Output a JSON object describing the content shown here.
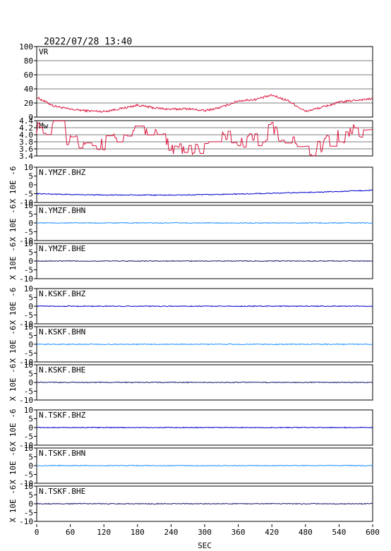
{
  "header": {
    "timestamp": "2022/07/28 13:40"
  },
  "chart_data": {
    "type": "line",
    "xlabel": "SEC",
    "xlim": [
      0,
      600
    ],
    "xticks": [
      "0",
      "60",
      "120",
      "180",
      "240",
      "300",
      "360",
      "420",
      "480",
      "540",
      "600"
    ],
    "panels": [
      {
        "label": "VR",
        "ylim": [
          0,
          100
        ],
        "yticks": [
          "100",
          "80",
          "60",
          "40",
          "20",
          "0"
        ],
        "grid": true,
        "color": "#dc143c",
        "x": [
          0,
          30,
          60,
          90,
          120,
          150,
          180,
          210,
          240,
          270,
          300,
          330,
          360,
          390,
          420,
          450,
          480,
          510,
          540,
          570,
          600
        ],
        "values": [
          28,
          16,
          11,
          9,
          8,
          12,
          17,
          13,
          11,
          12,
          9,
          14,
          23,
          25,
          31,
          23,
          8,
          14,
          21,
          24,
          26
        ]
      },
      {
        "label": "Mw",
        "ylim": [
          3.4,
          4.4
        ],
        "yticks": [
          "4.4",
          "4.2",
          "4.0",
          "3.8",
          "3.6",
          "3.4"
        ],
        "grid": true,
        "color": "#dc143c",
        "x": [
          0,
          30,
          60,
          90,
          120,
          150,
          180,
          210,
          240,
          270,
          300,
          330,
          360,
          390,
          420,
          450,
          480,
          510,
          540,
          570,
          600
        ],
        "values": [
          4.25,
          4.2,
          3.85,
          3.7,
          3.75,
          4.0,
          4.3,
          4.05,
          3.65,
          3.55,
          3.7,
          4.05,
          3.75,
          3.85,
          4.15,
          3.8,
          3.55,
          3.7,
          3.95,
          4.1,
          4.25
        ]
      },
      {
        "label": "N.YMZF.BHZ",
        "ylabel": "X 10E -6",
        "ylim": [
          -10,
          10
        ],
        "yticks": [
          "10",
          "5",
          "0",
          "-5",
          "-10"
        ],
        "color": "#0000cd",
        "x": [
          0,
          60,
          120,
          180,
          240,
          300,
          360,
          420,
          480,
          540,
          600
        ],
        "values": [
          -5,
          -5.5,
          -5.7,
          -5.8,
          -5.8,
          -5.6,
          -5.2,
          -4.8,
          -4.3,
          -3.8,
          -3
        ]
      },
      {
        "label": "N.YMZF.BHN",
        "ylabel": "X 10E -6",
        "ylim": [
          -10,
          10
        ],
        "yticks": [
          "10",
          "5",
          "0",
          "-5",
          "-10"
        ],
        "color": "#1e90ff",
        "x": [
          0,
          600
        ],
        "values": [
          0,
          0
        ]
      },
      {
        "label": "N.YMZF.BHE",
        "ylabel": "X 10E -6",
        "ylim": [
          -10,
          10
        ],
        "yticks": [
          "10",
          "5",
          "0",
          "-5",
          "-10"
        ],
        "color": "#191970",
        "x": [
          0,
          600
        ],
        "values": [
          0,
          0
        ]
      },
      {
        "label": "N.KSKF.BHZ",
        "ylabel": "X 10E -6",
        "ylim": [
          -10,
          10
        ],
        "yticks": [
          "10",
          "5",
          "0",
          "-5",
          "-10"
        ],
        "color": "#0000cd",
        "x": [
          0,
          600
        ],
        "values": [
          0,
          0
        ]
      },
      {
        "label": "N.KSKF.BHN",
        "ylabel": "X 10E -6",
        "ylim": [
          -10,
          10
        ],
        "yticks": [
          "10",
          "5",
          "0",
          "-5",
          "-10"
        ],
        "color": "#1e90ff",
        "x": [
          0,
          600
        ],
        "values": [
          0,
          0
        ]
      },
      {
        "label": "N.KSKF.BHE",
        "ylabel": "X 10E -6",
        "ylim": [
          -10,
          10
        ],
        "yticks": [
          "10",
          "5",
          "0",
          "-5",
          "-10"
        ],
        "color": "#191970",
        "x": [
          0,
          600
        ],
        "values": [
          0,
          0
        ]
      },
      {
        "label": "N.TSKF.BHZ",
        "ylabel": "X 10E -6",
        "ylim": [
          -10,
          10
        ],
        "yticks": [
          "10",
          "5",
          "0",
          "-5",
          "-10"
        ],
        "color": "#0000cd",
        "x": [
          0,
          600
        ],
        "values": [
          0,
          0
        ]
      },
      {
        "label": "N.TSKF.BHN",
        "ylabel": "X 10E -6",
        "ylim": [
          -10,
          10
        ],
        "yticks": [
          "10",
          "5",
          "0",
          "-5",
          "-10"
        ],
        "color": "#1e90ff",
        "x": [
          0,
          600
        ],
        "values": [
          0,
          0
        ]
      },
      {
        "label": "N.TSKF.BHE",
        "ylabel": "X 10E -6",
        "ylim": [
          -10,
          10
        ],
        "yticks": [
          "10",
          "5",
          "0",
          "-5",
          "-10"
        ],
        "color": "#191970",
        "x": [
          0,
          600
        ],
        "values": [
          0,
          0
        ]
      }
    ]
  }
}
